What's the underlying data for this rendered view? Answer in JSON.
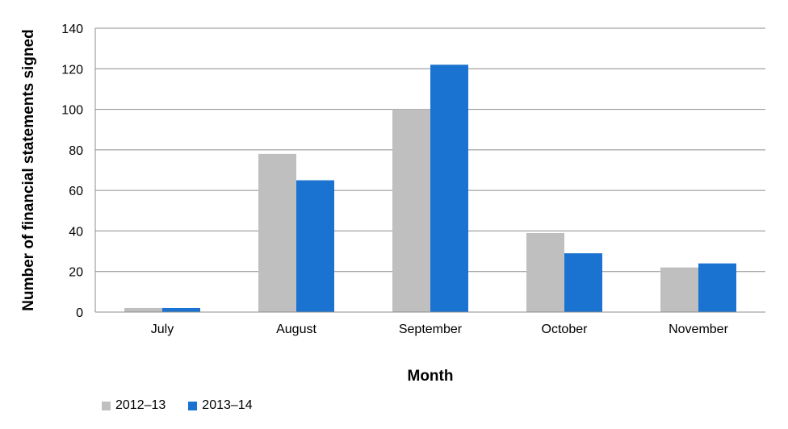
{
  "chart_data": {
    "type": "bar",
    "categories": [
      "July",
      "August",
      "September",
      "October",
      "November"
    ],
    "series": [
      {
        "name": "2012–13",
        "color": "#bfbfc0",
        "values": [
          2,
          78,
          100,
          39,
          22
        ]
      },
      {
        "name": "2013–14",
        "color": "#1a73d0",
        "values": [
          2,
          65,
          122,
          29,
          24
        ]
      }
    ],
    "ylim": [
      0,
      140
    ],
    "yticks": [
      0,
      20,
      40,
      60,
      80,
      100,
      120,
      140
    ],
    "xlabel": "Month",
    "ylabel": "Number of financial statements signed",
    "grid": true,
    "legend": "bottom-left"
  }
}
